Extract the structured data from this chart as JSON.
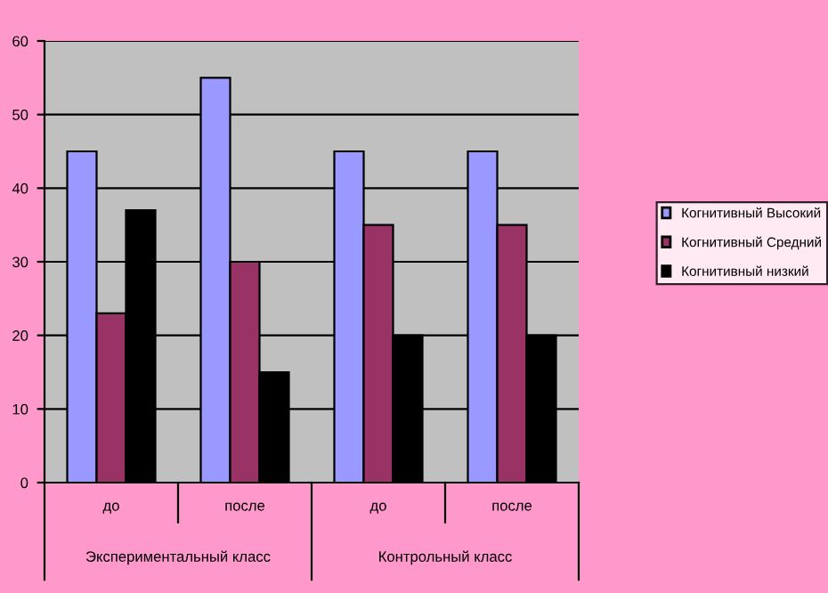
{
  "chart_data": {
    "type": "bar",
    "categories": [
      "до",
      "после",
      "до",
      "после"
    ],
    "series": [
      {
        "name": "Когнитивный Высокий",
        "color": "#9999ff",
        "values": [
          45,
          55,
          45,
          45
        ]
      },
      {
        "name": "Когнитивный Средний",
        "color": "#993366",
        "values": [
          23,
          30,
          35,
          35
        ]
      },
      {
        "name": "Когнитивный низкий",
        "color": "#000000",
        "values": [
          37,
          15,
          20,
          20
        ]
      }
    ],
    "annotations": [
      "Экспериментальный класс",
      "Контрольный класс"
    ],
    "ylim": [
      0,
      60
    ],
    "yticks": [
      0,
      10,
      20,
      30,
      40,
      50,
      60
    ],
    "grid": "y",
    "legend": "right"
  }
}
